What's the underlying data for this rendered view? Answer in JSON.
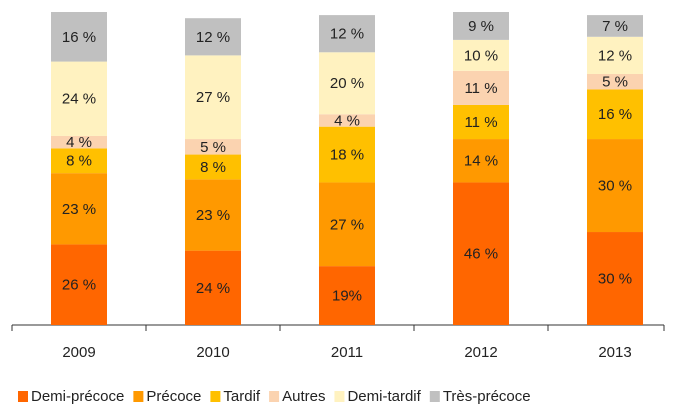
{
  "chart_data": {
    "type": "stacked_bar",
    "categories": [
      "2009",
      "2010",
      "2011",
      "2012",
      "2013"
    ],
    "series": [
      {
        "name": "Demi-précoce",
        "color": "#ff6600",
        "values": [
          26,
          24,
          19,
          46,
          30
        ],
        "value_labels": [
          "26 %",
          "24 %",
          "19%",
          "46 %",
          "30 %"
        ]
      },
      {
        "name": "Précoce",
        "color": "#ff9900",
        "values": [
          23,
          23,
          27,
          14,
          30
        ],
        "value_labels": [
          "23 %",
          "23 %",
          "27 %",
          "14 %",
          "30 %"
        ]
      },
      {
        "name": "Tardif",
        "color": "#ffc000",
        "values": [
          8,
          8,
          18,
          11,
          16
        ],
        "value_labels": [
          "8 %",
          "8 %",
          "18 %",
          "11 %",
          "16 %"
        ]
      },
      {
        "name": "Autres",
        "color": "#fbd3b0",
        "values": [
          4,
          5,
          4,
          11,
          5
        ],
        "value_labels": [
          "4 %",
          "5 %",
          "4 %",
          "11 %",
          "5 %"
        ]
      },
      {
        "name": "Demi-tardif",
        "color": "#fff2c0",
        "values": [
          24,
          27,
          20,
          10,
          12
        ],
        "value_labels": [
          "24 %",
          "27 %",
          "20 %",
          "10 %",
          "12 %"
        ]
      },
      {
        "name": "Très-précoce",
        "color": "#c0c0c0",
        "values": [
          16,
          12,
          12,
          9,
          7
        ],
        "value_labels": [
          "16 %",
          "12 %",
          "12 %",
          "9 %",
          "7 %"
        ]
      }
    ]
  }
}
